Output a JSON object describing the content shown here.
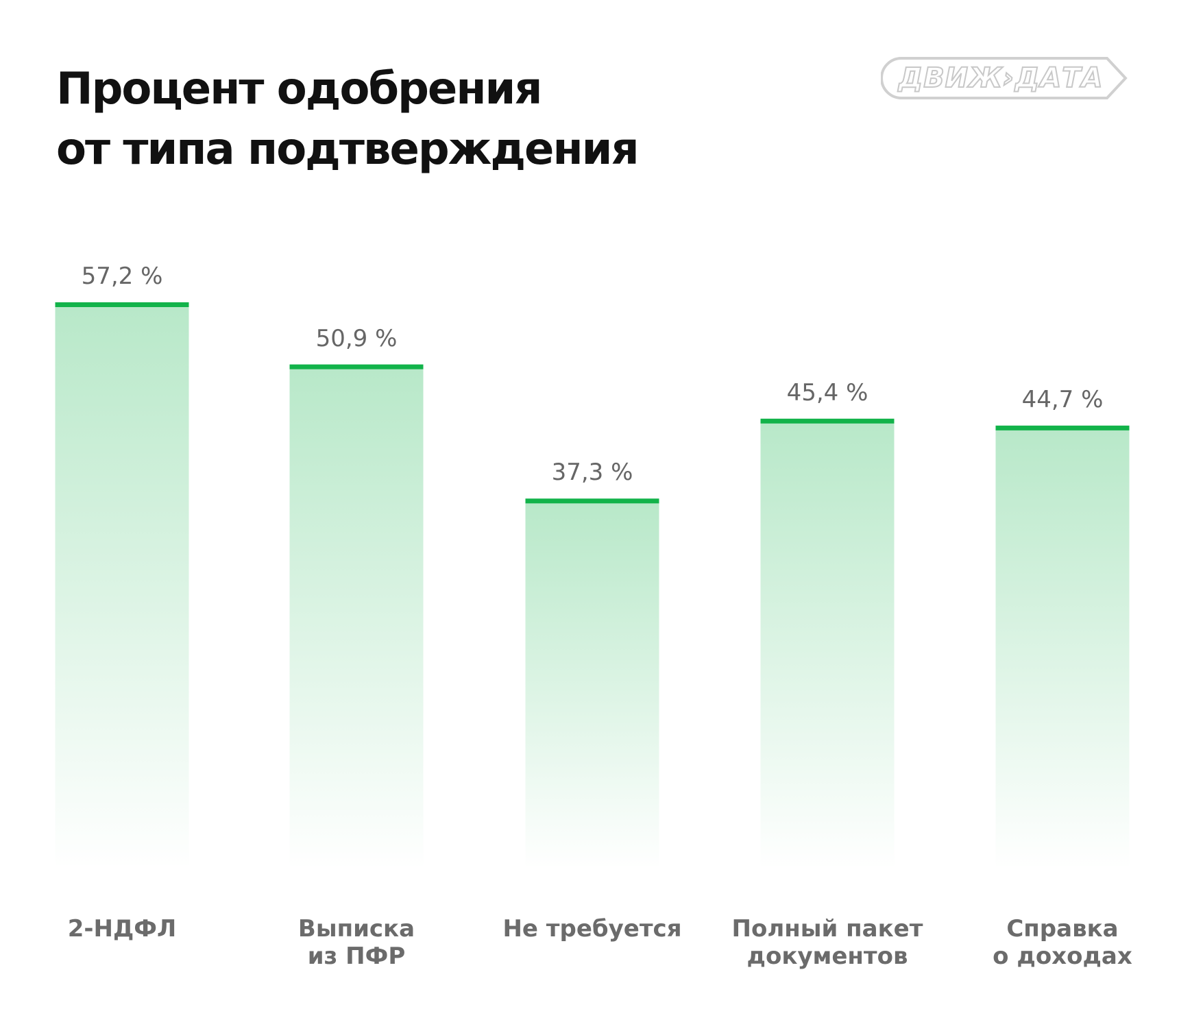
{
  "chart_data": {
    "type": "bar",
    "title": "Процент одобрения\nот типа подтверждения",
    "logo": "ДВИЖ›ДАТА",
    "categories": [
      "2-НДФЛ",
      "Выписка\nиз ПФР",
      "Не требуется",
      "Полный пакет\nдокументов",
      "Справка\nо доходах"
    ],
    "values": [
      57.2,
      50.9,
      37.3,
      45.4,
      44.7
    ],
    "value_labels": [
      "57,2 %",
      "50,9 %",
      "37,3 %",
      "45,4 %",
      "44,7 %"
    ],
    "color": "#12b34a"
  }
}
